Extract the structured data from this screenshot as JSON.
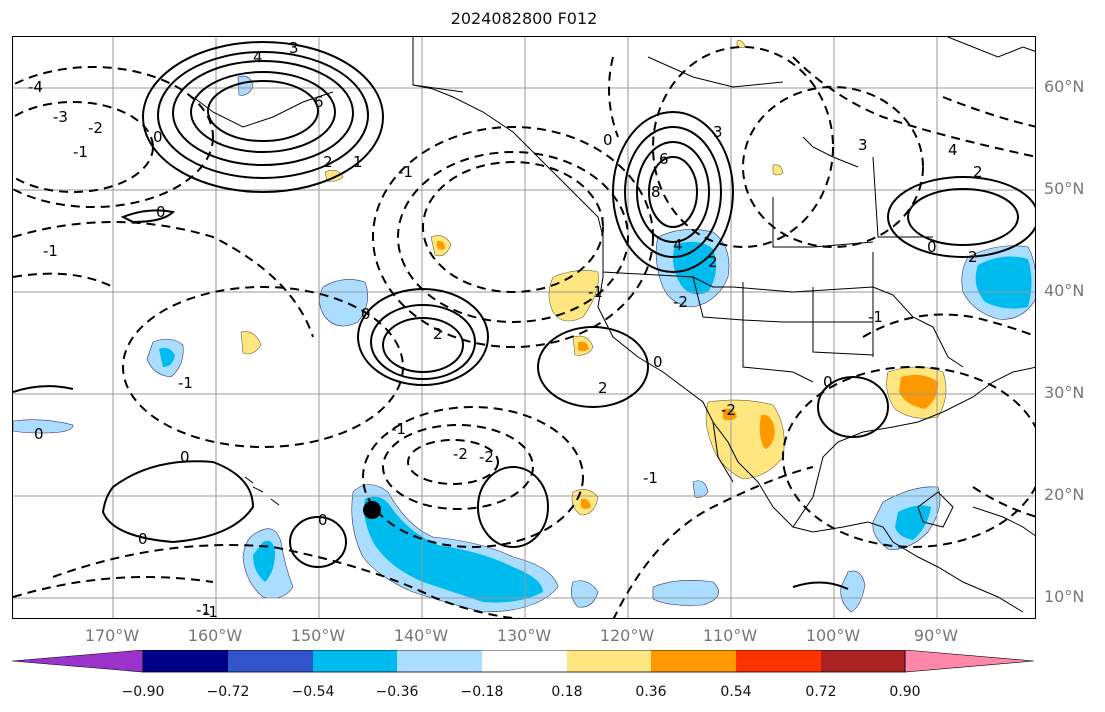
{
  "title": "2024082800 F012",
  "lon_labels": [
    "170°W",
    "160°W",
    "150°W",
    "140°W",
    "130°W",
    "120°W",
    "110°W",
    "100°W",
    "90°W"
  ],
  "lat_labels": [
    "60°N",
    "50°N",
    "40°N",
    "30°N",
    "20°N",
    "10°N"
  ],
  "colorbar": {
    "ticks": [
      "−0.90",
      "−0.72",
      "−0.54",
      "−0.36",
      "−0.18",
      "0.18",
      "0.36",
      "0.54",
      "0.72",
      "0.90"
    ],
    "colors": [
      "#9933cc",
      "#000088",
      "#3355cc",
      "#00bbee",
      "#aaddff",
      "#ffffff",
      "#ffe680",
      "#ff9900",
      "#ff3300",
      "#aa2222",
      "#ff88aa"
    ]
  },
  "contour_labels": [
    "4",
    "3",
    "6",
    "2",
    "1",
    "-1",
    "-2",
    "0",
    "-3",
    "-4",
    "6",
    "8",
    "4",
    "3",
    "2",
    "0",
    "-1",
    "2",
    "-1",
    "-2",
    "0",
    "-1",
    "0",
    "2",
    "-1",
    "0",
    "-2",
    "0",
    "0",
    "-1",
    "-2",
    "0",
    "0",
    "-1",
    "3",
    "4",
    "2",
    "0",
    "2",
    "-1",
    "0",
    "-2",
    "-1",
    "-1"
  ],
  "colors": {
    "gridline": "#999999",
    "contour": "#000000",
    "coast": "#000000"
  }
}
